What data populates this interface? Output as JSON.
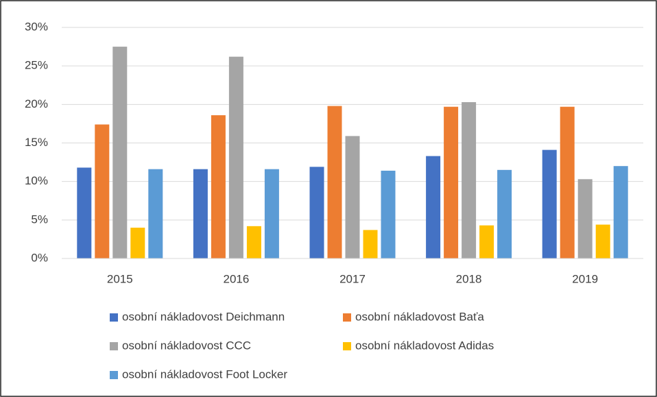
{
  "chart_data": {
    "type": "bar",
    "categories": [
      "2015",
      "2016",
      "2017",
      "2018",
      "2019"
    ],
    "series": [
      {
        "name": "osobní nákladovost Deichmann",
        "color": "#4472c4",
        "values": [
          11.8,
          11.6,
          11.9,
          13.3,
          14.1
        ]
      },
      {
        "name": "osobní nákladovost Baťa",
        "color": "#ed7d31",
        "values": [
          17.4,
          18.6,
          19.8,
          19.7,
          19.7
        ]
      },
      {
        "name": "osobní nákladovost CCC",
        "color": "#a5a5a5",
        "values": [
          27.5,
          26.2,
          15.9,
          20.3,
          10.3
        ]
      },
      {
        "name": "osobní nákladovost Adidas",
        "color": "#ffc000",
        "values": [
          4.0,
          4.2,
          3.7,
          4.3,
          4.4
        ]
      },
      {
        "name": "osobní nákladovost Foot Locker",
        "color": "#5b9bd5",
        "values": [
          11.6,
          11.6,
          11.4,
          11.5,
          12.0
        ]
      }
    ],
    "ylim": [
      0,
      30
    ],
    "yticks": [
      {
        "value": 0,
        "label": "0%"
      },
      {
        "value": 5,
        "label": "5%"
      },
      {
        "value": 10,
        "label": "10%"
      },
      {
        "value": 15,
        "label": "15%"
      },
      {
        "value": 20,
        "label": "20%"
      },
      {
        "value": 25,
        "label": "25%"
      },
      {
        "value": 30,
        "label": "30%"
      }
    ],
    "grid": true,
    "legend": "bottom"
  }
}
